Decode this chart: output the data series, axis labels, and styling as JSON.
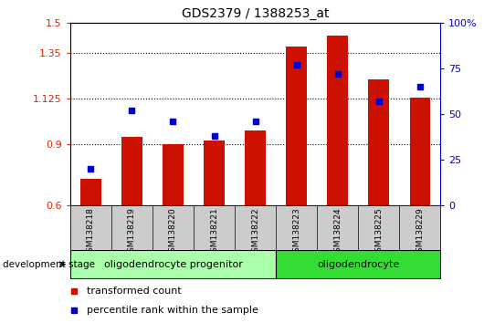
{
  "title": "GDS2379 / 1388253_at",
  "samples": [
    "GSM138218",
    "GSM138219",
    "GSM138220",
    "GSM138221",
    "GSM138222",
    "GSM138223",
    "GSM138224",
    "GSM138225",
    "GSM138229"
  ],
  "bar_values": [
    0.73,
    0.935,
    0.9,
    0.92,
    0.97,
    1.38,
    1.435,
    1.22,
    1.13
  ],
  "percentile_values": [
    20,
    52,
    46,
    38,
    46,
    77,
    72,
    57,
    65
  ],
  "bar_color": "#cc1100",
  "point_color": "#0000cc",
  "ylim_left": [
    0.6,
    1.5
  ],
  "ylim_right": [
    0,
    100
  ],
  "yticks_left": [
    0.6,
    0.9,
    1.125,
    1.35,
    1.5
  ],
  "yticks_right": [
    0,
    25,
    50,
    75,
    100
  ],
  "ytick_labels_left": [
    "0.6",
    "0.9",
    "1.125",
    "1.35",
    "1.5"
  ],
  "ytick_labels_right": [
    "0",
    "25",
    "50",
    "75",
    "100%"
  ],
  "hlines": [
    0.9,
    1.125,
    1.35
  ],
  "stage_groups": [
    {
      "label": "oligodendrocyte progenitor",
      "start": 0,
      "end": 4,
      "color": "#aaffaa"
    },
    {
      "label": "oligodendrocyte",
      "start": 5,
      "end": 8,
      "color": "#33dd33"
    }
  ],
  "dev_stage_label": "development stage",
  "legend_items": [
    {
      "label": "transformed count",
      "color": "#cc1100"
    },
    {
      "label": "percentile rank within the sample",
      "color": "#0000cc"
    }
  ],
  "bar_width": 0.5,
  "background_color": "#ffffff",
  "tick_area_color": "#cccccc",
  "title_fontsize": 10,
  "axis_fontsize": 8,
  "legend_fontsize": 8,
  "stage_fontsize": 8,
  "sample_fontsize": 6.5
}
